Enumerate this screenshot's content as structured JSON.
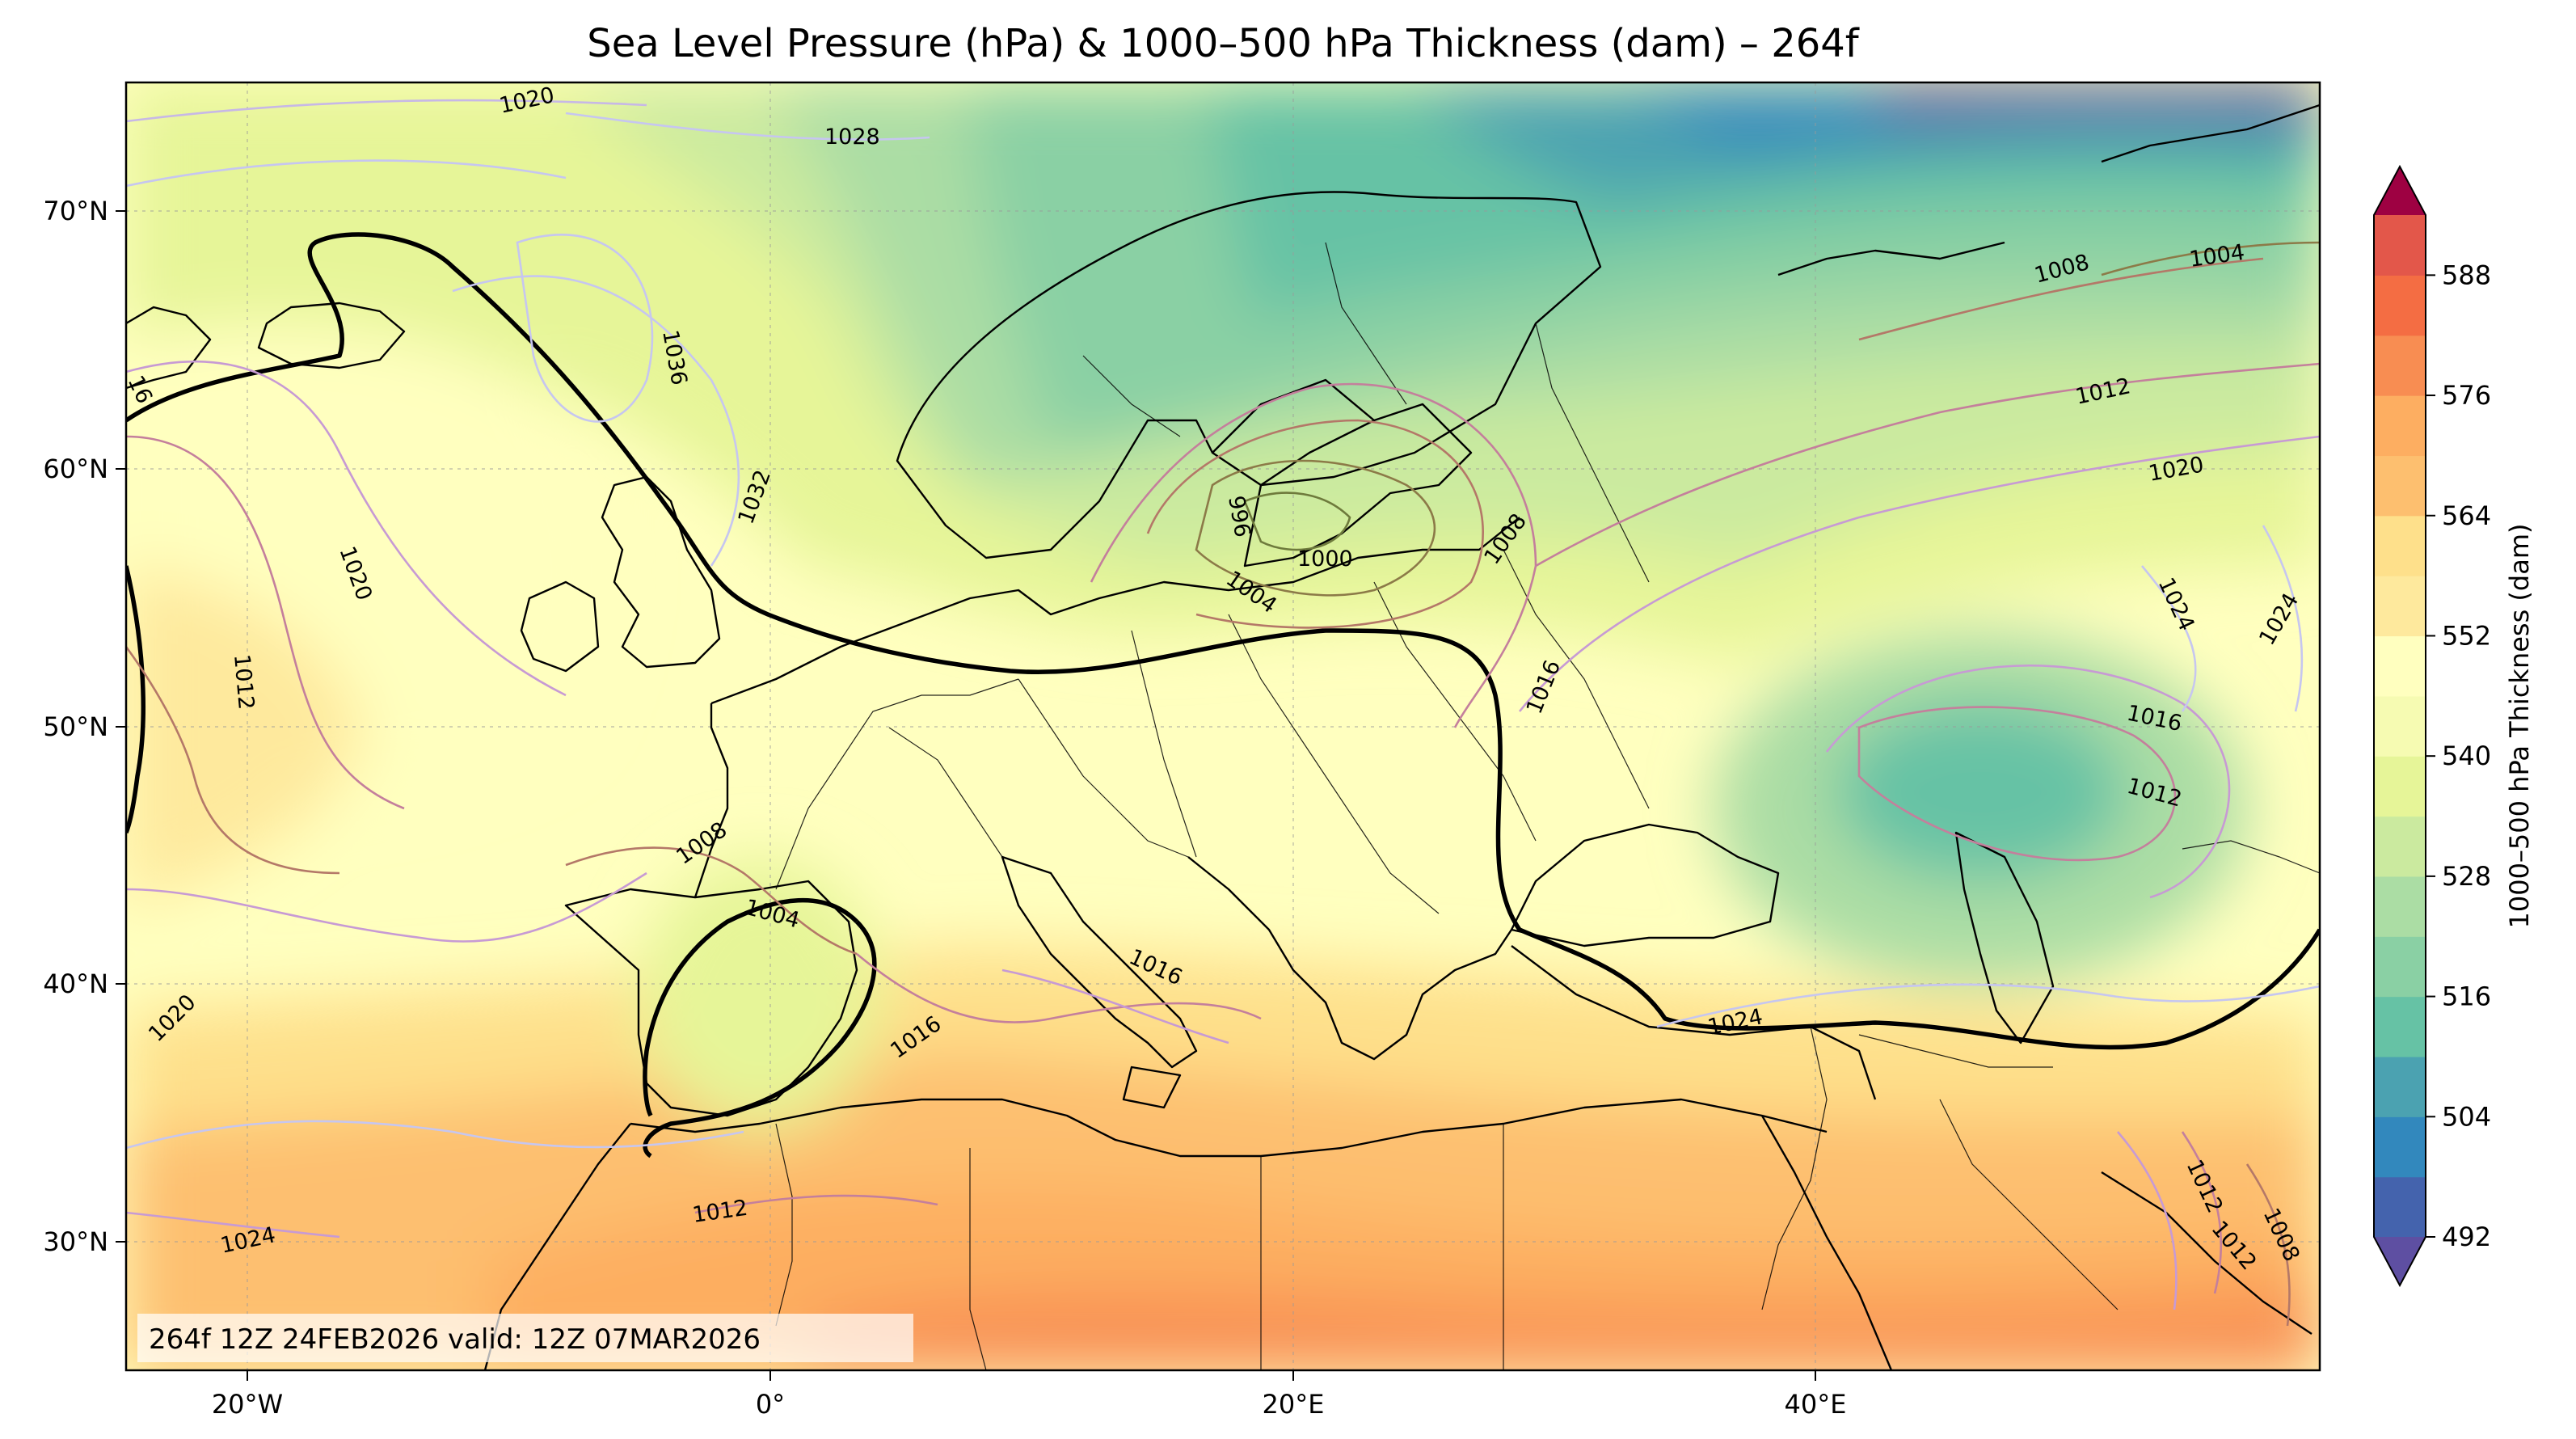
{
  "title": "Sea Level Pressure (hPa) & 1000–500 hPa Thickness (dam) – 264f",
  "info_box": "264f 12Z 24FEB2026 valid: 12Z 07MAR2026",
  "map": {
    "extent": {
      "lon": [
        -25,
        59
      ],
      "lat": [
        25,
        75
      ]
    },
    "lon_ticks": [
      "20°W",
      "0°",
      "20°E",
      "40°E"
    ],
    "lat_ticks": [
      "30°N",
      "40°N",
      "50°N",
      "60°N",
      "70°N"
    ],
    "thick_540_line": "black bold",
    "isobar_color_ramp": [
      "#c6c6f0",
      "#c79ad4",
      "#c47f9c",
      "#b47868",
      "#8c7a48",
      "#6e7a3c"
    ]
  },
  "colorbar": {
    "label": "1000–500 hPa Thickness (dam)",
    "ticks": [
      "492",
      "504",
      "516",
      "528",
      "540",
      "552",
      "564",
      "576",
      "588"
    ],
    "levels": [
      492,
      498,
      504,
      510,
      516,
      522,
      528,
      534,
      540,
      546,
      552,
      558,
      564,
      570,
      576,
      582,
      588,
      594
    ],
    "colors": [
      "#5e4fa2",
      "#4463ad",
      "#3288bd",
      "#4ba2b1",
      "#66c2a5",
      "#8ad0a4",
      "#abdda4",
      "#cbea9f",
      "#e6f598",
      "#f6fbb2",
      "#ffffbf",
      "#fee99d",
      "#fee08b",
      "#fdbf6f",
      "#fdae61",
      "#f88d52",
      "#f46d43",
      "#e3574a",
      "#d53e4f",
      "#9e0142"
    ]
  },
  "isobar_labels": [
    "1020",
    "1028",
    "1036",
    "1032",
    "1020",
    "1012",
    "16",
    "1008",
    "1004",
    "1020",
    "1024",
    "996",
    "1000",
    "1004",
    "1008",
    "1016",
    "1016",
    "1016",
    "1008",
    "1004",
    "1012",
    "1020",
    "1024",
    "1024",
    "1016",
    "1012",
    "1024",
    "1012",
    "1012",
    "1008",
    "1012"
  ]
}
